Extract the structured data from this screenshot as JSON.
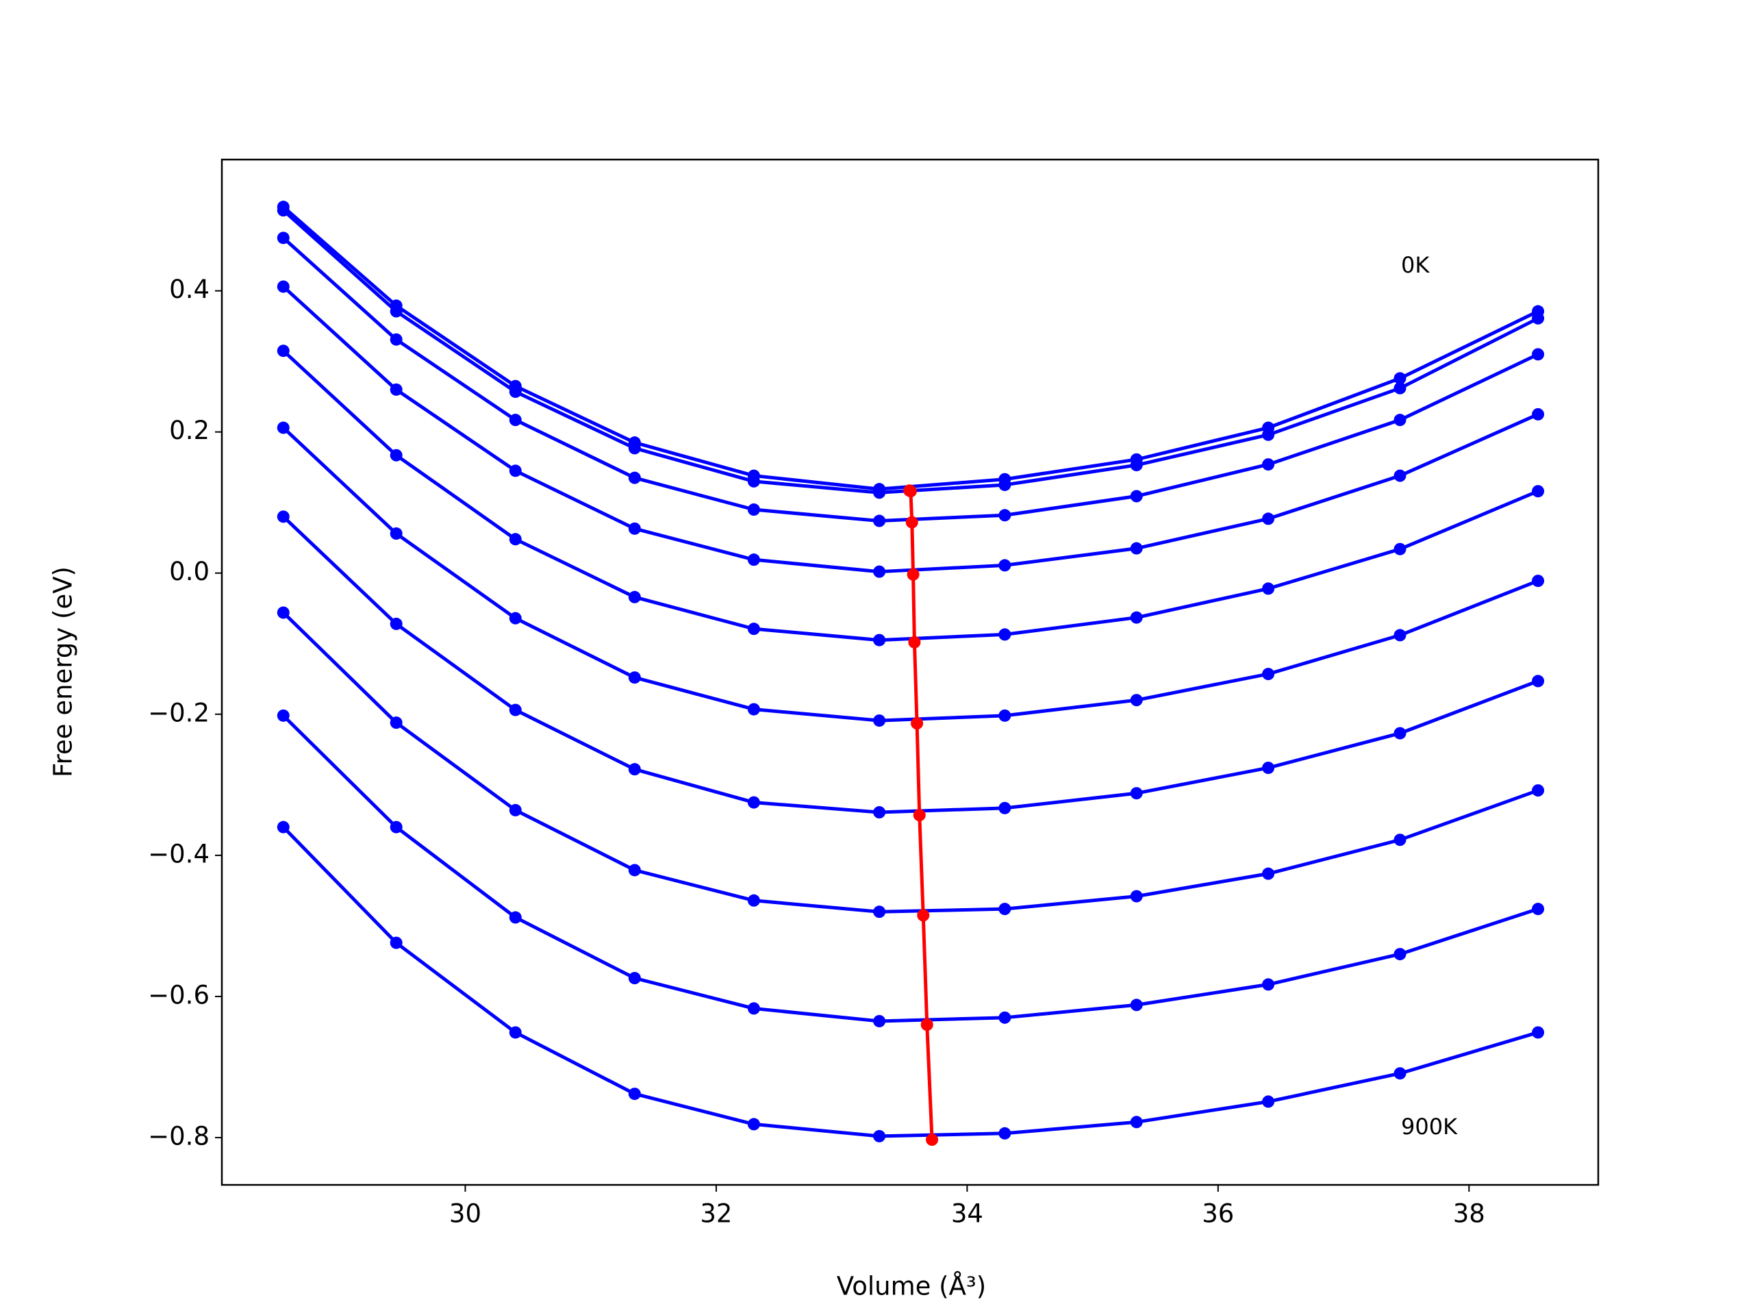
{
  "chart_data": {
    "type": "line",
    "xlabel": "Volume (Å³)",
    "ylabel": "Free energy (eV)",
    "annotations": [
      "0K",
      "900K"
    ],
    "x": [
      28.55,
      29.45,
      30.4,
      31.35,
      32.3,
      33.3,
      34.3,
      35.35,
      36.4,
      37.45,
      38.55
    ],
    "series": [
      {
        "color": "#0000ff",
        "values": [
          0.519,
          0.379,
          0.265,
          0.185,
          0.138,
          0.119,
          0.133,
          0.161,
          0.206,
          0.276,
          0.371
        ]
      },
      {
        "color": "#0000ff",
        "values": [
          0.514,
          0.371,
          0.257,
          0.177,
          0.13,
          0.114,
          0.125,
          0.153,
          0.196,
          0.262,
          0.361
        ]
      },
      {
        "color": "#0000ff",
        "values": [
          0.475,
          0.331,
          0.217,
          0.135,
          0.09,
          0.074,
          0.082,
          0.109,
          0.154,
          0.217,
          0.31
        ]
      },
      {
        "color": "#0000ff",
        "values": [
          0.406,
          0.26,
          0.145,
          0.063,
          0.019,
          0.002,
          0.011,
          0.035,
          0.077,
          0.138,
          0.225
        ]
      },
      {
        "color": "#0000ff",
        "values": [
          0.315,
          0.167,
          0.048,
          -0.034,
          -0.079,
          -0.095,
          -0.087,
          -0.063,
          -0.022,
          0.034,
          0.116
        ]
      },
      {
        "color": "#0000ff",
        "values": [
          0.206,
          0.056,
          -0.064,
          -0.148,
          -0.193,
          -0.209,
          -0.202,
          -0.18,
          -0.143,
          -0.088,
          -0.011
        ]
      },
      {
        "color": "#0000ff",
        "values": [
          0.08,
          -0.072,
          -0.194,
          -0.278,
          -0.325,
          -0.339,
          -0.333,
          -0.312,
          -0.276,
          -0.227,
          -0.153
        ]
      },
      {
        "color": "#0000ff",
        "values": [
          -0.056,
          -0.212,
          -0.336,
          -0.421,
          -0.464,
          -0.48,
          -0.476,
          -0.458,
          -0.426,
          -0.378,
          -0.308
        ]
      },
      {
        "color": "#0000ff",
        "values": [
          -0.202,
          -0.36,
          -0.488,
          -0.574,
          -0.617,
          -0.635,
          -0.63,
          -0.612,
          -0.583,
          -0.54,
          -0.476
        ]
      },
      {
        "color": "#0000ff",
        "values": [
          -0.36,
          -0.524,
          -0.651,
          -0.738,
          -0.781,
          -0.798,
          -0.794,
          -0.778,
          -0.749,
          -0.709,
          -0.651
        ]
      },
      {
        "color": "#ff0000",
        "x": [
          33.54,
          33.55,
          33.56,
          33.57,
          33.58,
          33.6,
          33.62,
          33.65,
          33.68,
          33.72
        ],
        "values": [
          0.117,
          0.116,
          0.072,
          -0.002,
          -0.098,
          -0.213,
          -0.343,
          -0.485,
          -0.64,
          -0.803
        ]
      }
    ],
    "xlim": [
      28.06,
      39.03
    ],
    "ylim": [
      -0.867,
      0.586
    ],
    "xticks": [
      30,
      32,
      34,
      36,
      38
    ],
    "yticks": [
      0.4,
      0.2,
      {
        "value": 0.0,
        "label": "0.0"
      },
      {
        "value": -0.2,
        "label": "−0.2"
      },
      {
        "value": -0.4,
        "label": "−0.4"
      },
      {
        "value": -0.6,
        "label": "−0.6"
      },
      {
        "value": -0.8,
        "label": "−0.8"
      }
    ],
    "grid": false
  }
}
